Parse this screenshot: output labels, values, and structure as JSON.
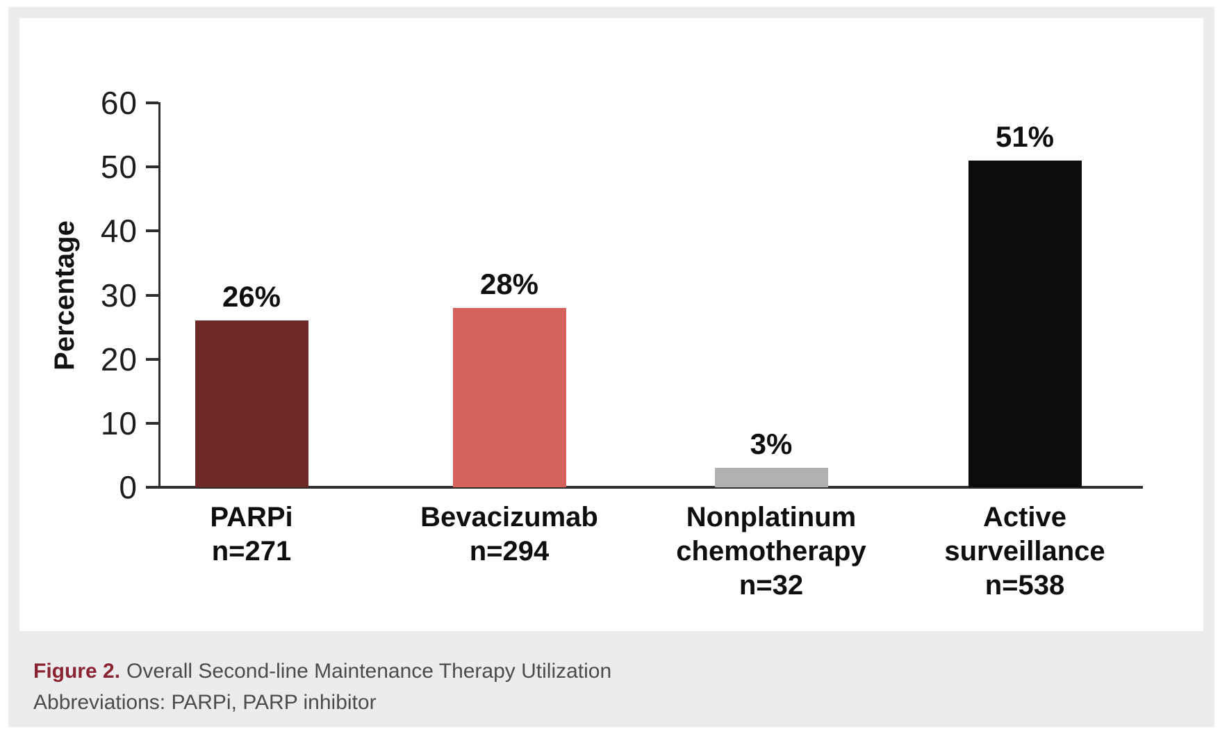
{
  "figure": {
    "caption": {
      "label": "Figure 2.",
      "title": "Overall Second-line Maintenance Therapy Utilization",
      "abbreviations": "Abbreviations: PARPi, PARP inhibitor"
    }
  },
  "chart_data": {
    "type": "bar",
    "title": "Overall Second-line Maintenance Therapy Utilization",
    "xlabel": "",
    "ylabel": "Percentage",
    "ylim": [
      0,
      60
    ],
    "yticks": [
      0,
      10,
      20,
      30,
      40,
      50,
      60
    ],
    "grid": false,
    "legend": "none",
    "categories": [
      {
        "name": "PARPi",
        "n": 271,
        "lines": [
          "PARPi",
          "n=271"
        ]
      },
      {
        "name": "Bevacizumab",
        "n": 294,
        "lines": [
          "Bevacizumab",
          "n=294"
        ]
      },
      {
        "name": "Nonplatinum chemotherapy",
        "n": 32,
        "lines": [
          "Nonplatinum",
          "chemotherapy",
          "n=32"
        ]
      },
      {
        "name": "Active surveillance",
        "n": 538,
        "lines": [
          "Active",
          "surveillance",
          "n=538"
        ]
      }
    ],
    "values": [
      26,
      28,
      3,
      51
    ],
    "value_labels": [
      "26%",
      "28%",
      "3%",
      "51%"
    ],
    "bar_colors": [
      "#6e2a28",
      "#d5635c",
      "#b1b1b1",
      "#0c0c0c"
    ]
  },
  "colors": {
    "page_background": "#ffffff",
    "card_background": "#ececee",
    "panel_background": "#ffffff",
    "axis": "#2e2e2e",
    "tick_label": "#1c1c1c",
    "caption_label": "#8b2432",
    "caption_text": "#4b4b4b"
  }
}
